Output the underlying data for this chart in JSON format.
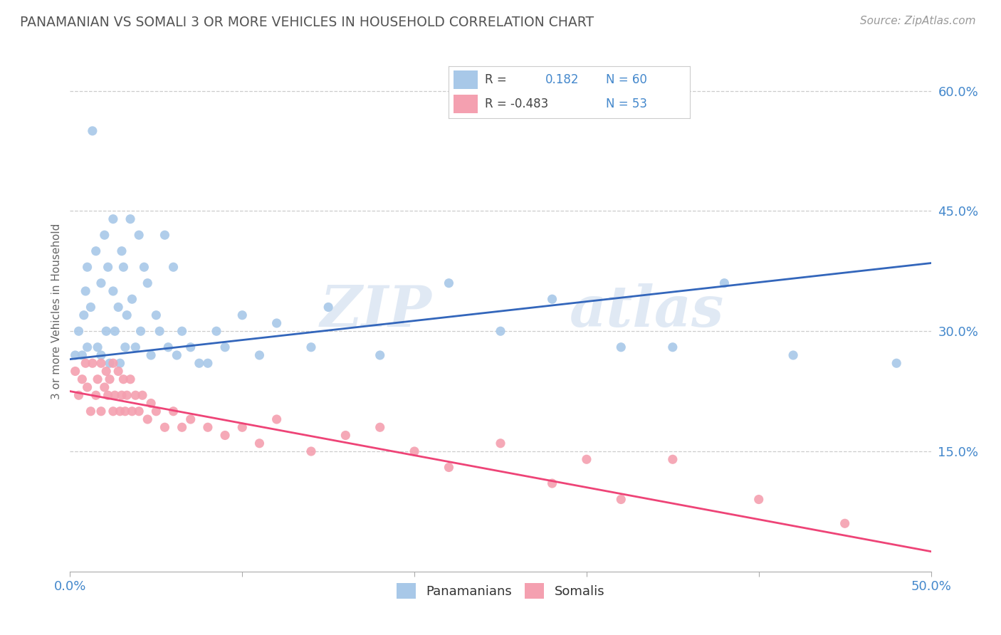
{
  "title": "PANAMANIAN VS SOMALI 3 OR MORE VEHICLES IN HOUSEHOLD CORRELATION CHART",
  "source": "Source: ZipAtlas.com",
  "ylabel": "3 or more Vehicles in Household",
  "ytick_vals": [
    0.15,
    0.3,
    0.45,
    0.6
  ],
  "xmin": 0.0,
  "xmax": 0.5,
  "ymin": 0.0,
  "ymax": 0.65,
  "watermark_zip": "ZIP",
  "watermark_atlas": "atlas",
  "blue_color": "#a8c8e8",
  "pink_color": "#f4a0b0",
  "blue_line_color": "#3366bb",
  "pink_line_color": "#ee4477",
  "title_color": "#555555",
  "axis_label_color": "#4488cc",
  "background_color": "#ffffff",
  "pan_x": [
    0.003,
    0.005,
    0.007,
    0.008,
    0.009,
    0.01,
    0.01,
    0.012,
    0.013,
    0.015,
    0.016,
    0.018,
    0.018,
    0.02,
    0.021,
    0.022,
    0.023,
    0.025,
    0.025,
    0.026,
    0.028,
    0.029,
    0.03,
    0.031,
    0.032,
    0.033,
    0.035,
    0.036,
    0.038,
    0.04,
    0.041,
    0.043,
    0.045,
    0.047,
    0.05,
    0.052,
    0.055,
    0.057,
    0.06,
    0.062,
    0.065,
    0.07,
    0.075,
    0.08,
    0.085,
    0.09,
    0.1,
    0.11,
    0.12,
    0.14,
    0.15,
    0.18,
    0.22,
    0.25,
    0.28,
    0.32,
    0.35,
    0.38,
    0.42,
    0.48
  ],
  "pan_y": [
    0.27,
    0.3,
    0.27,
    0.32,
    0.35,
    0.38,
    0.28,
    0.33,
    0.55,
    0.4,
    0.28,
    0.36,
    0.27,
    0.42,
    0.3,
    0.38,
    0.26,
    0.44,
    0.35,
    0.3,
    0.33,
    0.26,
    0.4,
    0.38,
    0.28,
    0.32,
    0.44,
    0.34,
    0.28,
    0.42,
    0.3,
    0.38,
    0.36,
    0.27,
    0.32,
    0.3,
    0.42,
    0.28,
    0.38,
    0.27,
    0.3,
    0.28,
    0.26,
    0.26,
    0.3,
    0.28,
    0.32,
    0.27,
    0.31,
    0.28,
    0.33,
    0.27,
    0.36,
    0.3,
    0.34,
    0.28,
    0.28,
    0.36,
    0.27,
    0.26
  ],
  "som_x": [
    0.003,
    0.005,
    0.007,
    0.009,
    0.01,
    0.012,
    0.013,
    0.015,
    0.016,
    0.018,
    0.018,
    0.02,
    0.021,
    0.022,
    0.023,
    0.025,
    0.025,
    0.026,
    0.028,
    0.029,
    0.03,
    0.031,
    0.032,
    0.033,
    0.035,
    0.036,
    0.038,
    0.04,
    0.042,
    0.045,
    0.047,
    0.05,
    0.055,
    0.06,
    0.065,
    0.07,
    0.08,
    0.09,
    0.1,
    0.11,
    0.12,
    0.14,
    0.16,
    0.18,
    0.2,
    0.22,
    0.25,
    0.28,
    0.3,
    0.32,
    0.35,
    0.4,
    0.45
  ],
  "som_y": [
    0.25,
    0.22,
    0.24,
    0.26,
    0.23,
    0.2,
    0.26,
    0.22,
    0.24,
    0.26,
    0.2,
    0.23,
    0.25,
    0.22,
    0.24,
    0.2,
    0.26,
    0.22,
    0.25,
    0.2,
    0.22,
    0.24,
    0.2,
    0.22,
    0.24,
    0.2,
    0.22,
    0.2,
    0.22,
    0.19,
    0.21,
    0.2,
    0.18,
    0.2,
    0.18,
    0.19,
    0.18,
    0.17,
    0.18,
    0.16,
    0.19,
    0.15,
    0.17,
    0.18,
    0.15,
    0.13,
    0.16,
    0.11,
    0.14,
    0.09,
    0.14,
    0.09,
    0.06
  ],
  "pan_trend_x": [
    0.0,
    0.5
  ],
  "pan_trend_y": [
    0.265,
    0.385
  ],
  "som_trend_x": [
    0.0,
    0.5
  ],
  "som_trend_y": [
    0.225,
    0.025
  ]
}
